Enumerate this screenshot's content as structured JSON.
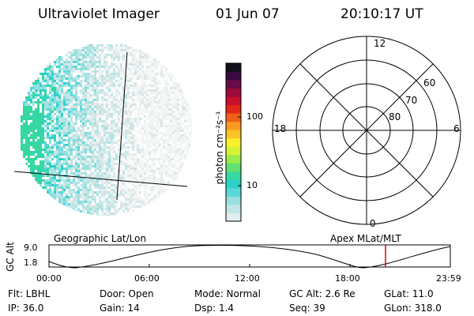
{
  "header": {
    "title": "Ultraviolet Imager",
    "date": "01 Jun 07",
    "time": "20:10:17 UT"
  },
  "colorbar": {
    "label": "photon cm⁻²s⁻¹",
    "ticks": [
      "100",
      "10"
    ],
    "colors": [
      "#dfeeee",
      "#c2e6e6",
      "#98e0e0",
      "#5ad8d8",
      "#2cd2c8",
      "#36d8a0",
      "#60e070",
      "#9aec4a",
      "#d4f236",
      "#f8f028",
      "#f8c428",
      "#f89a20",
      "#f06018",
      "#e42818",
      "#c8102e",
      "#9c0a3c",
      "#6a0a48",
      "#3a0a40",
      "#10101a"
    ]
  },
  "polar": {
    "labels": [
      "12",
      "60",
      "70",
      "80",
      "18",
      "6",
      "0"
    ]
  },
  "timeline": {
    "left_label": "Geographic Lat/Lon",
    "right_label": "Apex  MLat/MLT",
    "axis_title": "GC Alt",
    "y_ticks": [
      "9.0",
      "1.8"
    ],
    "x_ticks": [
      "00:00",
      "06:00",
      "12:00",
      "18:00",
      "23:59"
    ],
    "marker_color": "#e00000"
  },
  "info": {
    "flt": "Flt: LBHL",
    "door": "Door: Open",
    "mode": "Mode: Normal",
    "gc_alt": "GC Alt: 2.6 Re",
    "glat": "GLat:  11.0",
    "ip": "IP: 36.0",
    "gain": "Gain: 14",
    "dsp": "Dsp:    1.4",
    "seq": "Seq: 39",
    "glon": "GLon: 318.0"
  }
}
